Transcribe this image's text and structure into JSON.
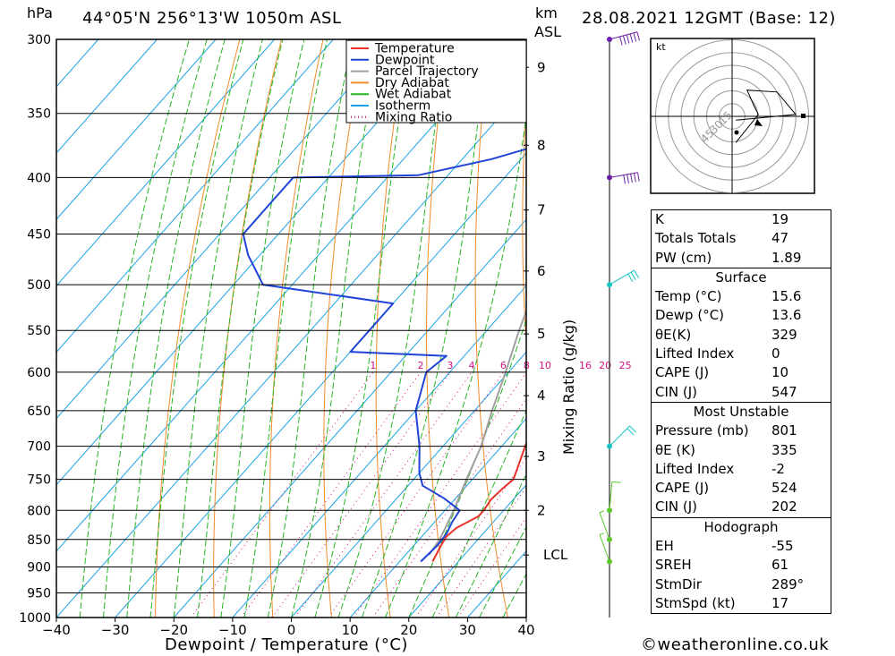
{
  "header": {
    "hpa_label": "hPa",
    "location": "44°05'N 256°13'W 1050m ASL",
    "km_label": "km",
    "asl_label": "ASL",
    "datetime": "28.08.2021 12GMT (Base: 12)"
  },
  "chart_data": {
    "type": "line",
    "xlabel": "Dewpoint / Temperature (°C)",
    "y2label": "Mixing Ratio (g/kg)",
    "yscale": "log-pressure",
    "skew": true,
    "xlim": [
      -40,
      40
    ],
    "ylim_hpa": [
      1000,
      300
    ],
    "x_ticks": [
      "−40",
      "−30",
      "−20",
      "−10",
      "0",
      "10",
      "20",
      "30",
      "40"
    ],
    "pressure_levels": [
      300,
      350,
      400,
      450,
      500,
      550,
      600,
      650,
      700,
      750,
      800,
      850,
      900,
      950,
      1000
    ],
    "km_ticks": [
      {
        "label": "9",
        "p": 318
      },
      {
        "label": "8",
        "p": 374
      },
      {
        "label": "7",
        "p": 428
      },
      {
        "label": "6",
        "p": 486
      },
      {
        "label": "5",
        "p": 554
      },
      {
        "label": "4",
        "p": 630
      },
      {
        "label": "3",
        "p": 715
      },
      {
        "label": "2",
        "p": 800
      },
      {
        "label": "LCL",
        "p": 878
      }
    ],
    "mixing_ratio_labels": [
      "1",
      "2",
      "3",
      "4",
      "6",
      "8",
      "10",
      "16",
      "20",
      "25"
    ],
    "legend": {
      "position": "top-right",
      "items": [
        {
          "name": "Temperature",
          "color": "#e8322c",
          "style": "solid"
        },
        {
          "name": "Dewpoint",
          "color": "#1f44d8",
          "style": "solid"
        },
        {
          "name": "Parcel Trajectory",
          "color": "#a0a0a0",
          "style": "solid"
        },
        {
          "name": "Dry Adiabat",
          "color": "#f08c2a",
          "style": "solid"
        },
        {
          "name": "Wet Adiabat",
          "color": "#22b522",
          "style": "solid"
        },
        {
          "name": "Isotherm",
          "color": "#1ca3e6",
          "style": "solid"
        },
        {
          "name": "Mixing Ratio",
          "color": "#d2127f",
          "style": "dotted"
        }
      ]
    },
    "series": [
      {
        "name": "Temperature",
        "color": "#e8322c",
        "points": [
          [
            890,
            15.6
          ],
          [
            860,
            14.6
          ],
          [
            845,
            14.2
          ],
          [
            830,
            14.6
          ],
          [
            810,
            16.6
          ],
          [
            800,
            16.6
          ],
          [
            782,
            16.2
          ],
          [
            765,
            16.5
          ],
          [
            750,
            17
          ],
          [
            700,
            14
          ],
          [
            650,
            11
          ],
          [
            600,
            7
          ],
          [
            580,
            5
          ],
          [
            550,
            1
          ],
          [
            520,
            -3.5
          ],
          [
            500,
            -6.5
          ],
          [
            480,
            -8
          ],
          [
            450,
            -11
          ],
          [
            420,
            -14.5
          ],
          [
            400,
            -17
          ],
          [
            370,
            -21.5
          ],
          [
            350,
            -24.5
          ],
          [
            320,
            -29.5
          ],
          [
            300,
            -34
          ]
        ]
      },
      {
        "name": "Dewpoint",
        "color": "#1f44d8",
        "points": [
          [
            890,
            13.6
          ],
          [
            860,
            14
          ],
          [
            840,
            13.8
          ],
          [
            820,
            13
          ],
          [
            800,
            12.5
          ],
          [
            780,
            8
          ],
          [
            760,
            2.5
          ],
          [
            740,
            0
          ],
          [
            700,
            -4
          ],
          [
            650,
            -10
          ],
          [
            600,
            -14
          ],
          [
            580,
            -13
          ],
          [
            575,
            -30
          ],
          [
            520,
            -30
          ],
          [
            500,
            -55
          ],
          [
            470,
            -62
          ],
          [
            450,
            -66
          ],
          [
            420,
            -66
          ],
          [
            400,
            -66
          ],
          [
            398,
            -45
          ],
          [
            385,
            -35
          ],
          [
            360,
            -21
          ],
          [
            348,
            -20.5
          ],
          [
            340,
            -24
          ],
          [
            330,
            -26.5
          ],
          [
            315,
            -25
          ],
          [
            300,
            -29
          ]
        ]
      },
      {
        "name": "Parcel Trajectory",
        "color": "#a0a0a0",
        "points": [
          [
            878,
            14
          ],
          [
            850,
            13.5
          ],
          [
            800,
            11.5
          ],
          [
            750,
            9
          ],
          [
            700,
            6.5
          ],
          [
            650,
            3
          ],
          [
            600,
            -0.5
          ],
          [
            550,
            -4.5
          ],
          [
            500,
            -8.5
          ],
          [
            450,
            -13.5
          ],
          [
            400,
            -19.5
          ],
          [
            350,
            -26
          ],
          [
            300,
            -33
          ]
        ]
      }
    ],
    "wind_barbs": [
      {
        "p": 300,
        "speed_kt": 60,
        "dir_deg": 255
      },
      {
        "p": 400,
        "speed_kt": 50,
        "dir_deg": 260
      },
      {
        "p": 500,
        "speed_kt": 30,
        "dir_deg": 240
      },
      {
        "p": 700,
        "speed_kt": 20,
        "dir_deg": 225
      },
      {
        "p": 800,
        "speed_kt": 10,
        "dir_deg": 185
      },
      {
        "p": 850,
        "speed_kt": 5,
        "dir_deg": 160
      },
      {
        "p": 890,
        "speed_kt": 5,
        "dir_deg": 160
      }
    ],
    "hodograph": {
      "unit_label": "kt",
      "ring_labels": [
        "15",
        "30",
        "45"
      ],
      "trace": [
        [
          2,
          -14
        ],
        [
          6,
          -9
        ],
        [
          10,
          -4
        ],
        [
          14,
          1
        ],
        [
          12,
          5
        ],
        [
          8,
          14
        ],
        [
          24,
          13
        ],
        [
          34,
          1
        ],
        [
          2,
          -2
        ]
      ]
    }
  },
  "indices": {
    "general": [
      {
        "label": "K",
        "value": "19"
      },
      {
        "label": "Totals Totals",
        "value": "47"
      },
      {
        "label": "PW (cm)",
        "value": "1.89"
      }
    ],
    "surface": {
      "title": "Surface",
      "rows": [
        {
          "label": "Temp (°C)",
          "value": "15.6"
        },
        {
          "label": "Dewp (°C)",
          "value": "13.6"
        },
        {
          "label": "θE(K)",
          "value": "329"
        },
        {
          "label": "Lifted Index",
          "value": "0"
        },
        {
          "label": "CAPE (J)",
          "value": "10"
        },
        {
          "label": "CIN (J)",
          "value": "547"
        }
      ]
    },
    "most_unstable": {
      "title": "Most Unstable",
      "rows": [
        {
          "label": "Pressure (mb)",
          "value": "801"
        },
        {
          "label": "θE (K)",
          "value": "335"
        },
        {
          "label": "Lifted Index",
          "value": "-2"
        },
        {
          "label": "CAPE (J)",
          "value": "524"
        },
        {
          "label": "CIN (J)",
          "value": "202"
        }
      ]
    },
    "hodograph": {
      "title": "Hodograph",
      "rows": [
        {
          "label": "EH",
          "value": "-55"
        },
        {
          "label": "SREH",
          "value": "61"
        },
        {
          "label": "StmDir",
          "value": "289°"
        },
        {
          "label": "StmSpd (kt)",
          "value": "17"
        }
      ]
    }
  },
  "footer": {
    "copyright": "©weatheronline.co.uk"
  },
  "colors": {
    "temperature": "#e8322c",
    "dewpoint": "#1f44d8",
    "parcel": "#a0a0a0",
    "dry_adiabat": "#f08c2a",
    "wet_adiabat": "#22b522",
    "isotherm": "#1ca3e6",
    "mixing_ratio": "#d2127f",
    "wind_axis": "#6a1fa8"
  }
}
